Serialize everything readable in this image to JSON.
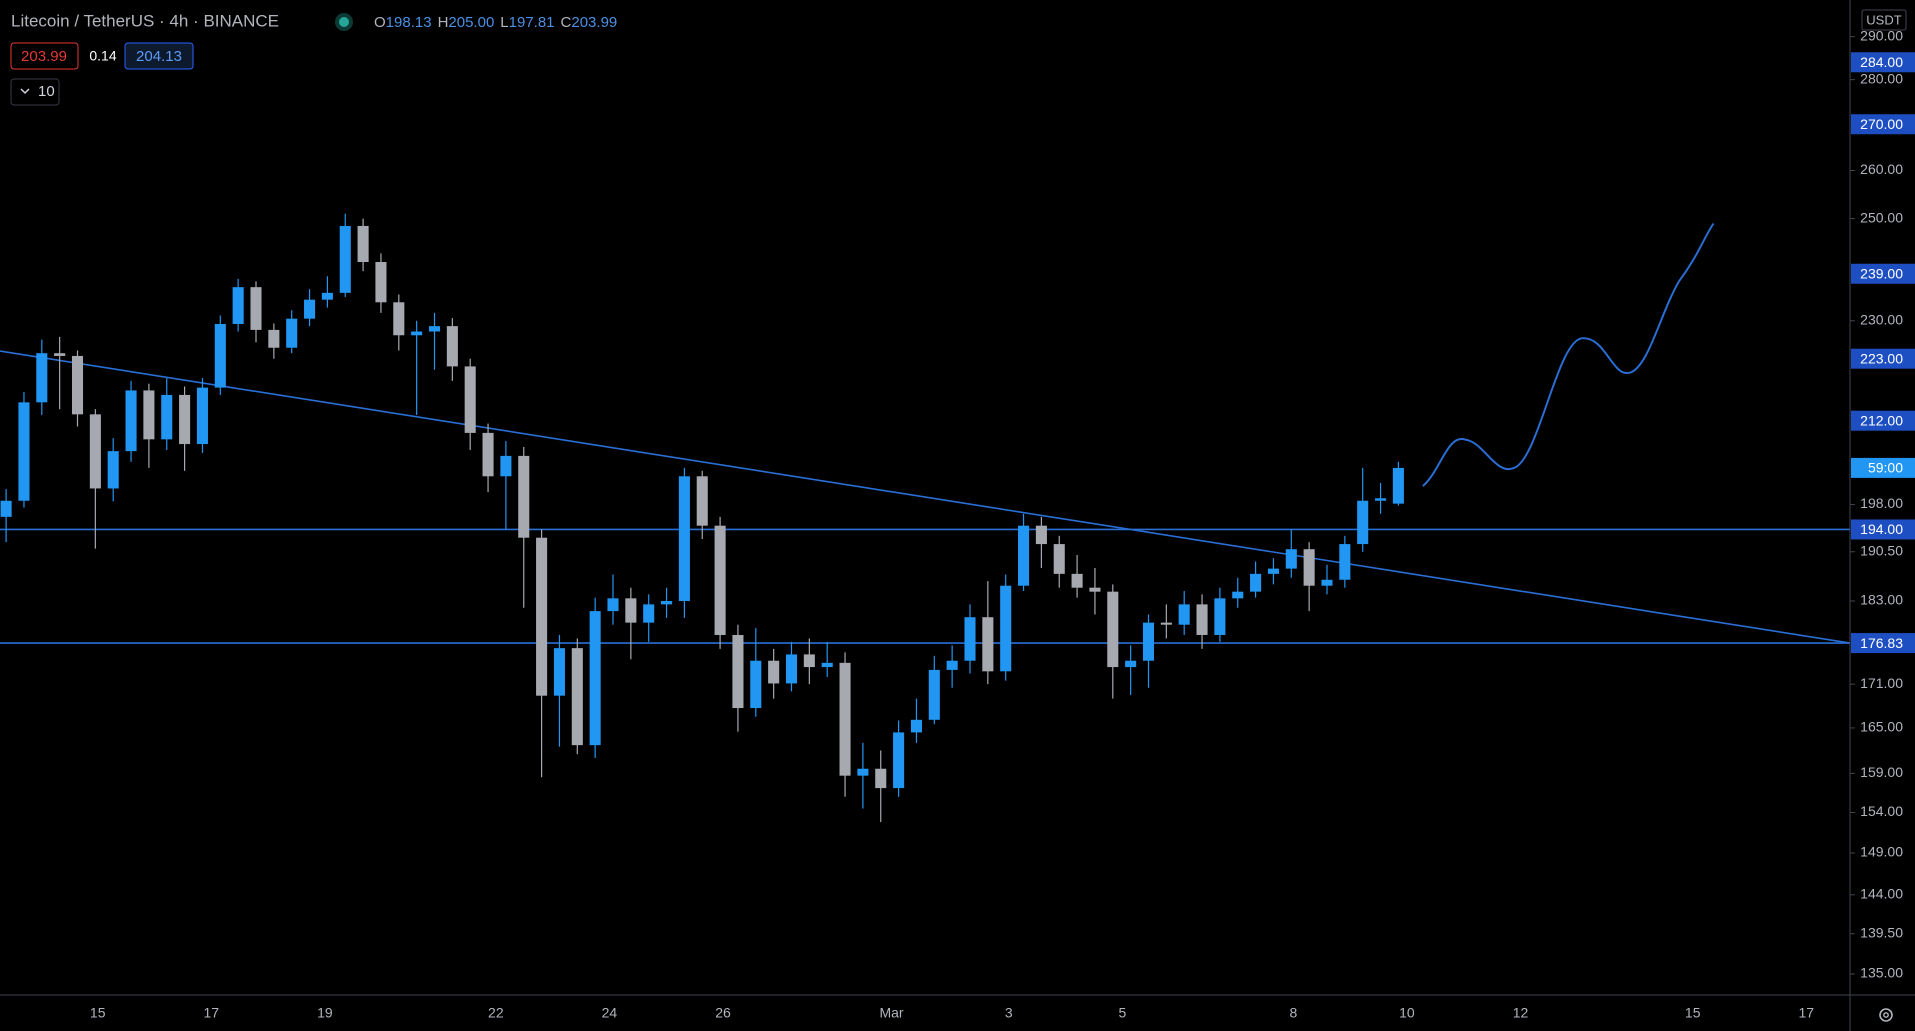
{
  "chart_data": {
    "type": "candlestick",
    "title": "Litecoin / TetherUS · 4h · BINANCE",
    "currency": "USDT",
    "log": true,
    "ylim": [
      132.7,
      298.8
    ],
    "yticks": [
      {
        "value": 290,
        "label": "290.00"
      },
      {
        "value": 280,
        "label": "280.00"
      },
      {
        "value": 260,
        "label": "260.00"
      },
      {
        "value": 250,
        "label": "250.00"
      },
      {
        "value": 230,
        "label": "230.00"
      },
      {
        "value": 198,
        "label": "198.00"
      },
      {
        "value": 190.5,
        "label": "190.50"
      },
      {
        "value": 183,
        "label": "183.00"
      },
      {
        "value": 171,
        "label": "171.00"
      },
      {
        "value": 165,
        "label": "165.00"
      },
      {
        "value": 159,
        "label": "159.00"
      },
      {
        "value": 154,
        "label": "154.00"
      },
      {
        "value": 149,
        "label": "149.00"
      },
      {
        "value": 144,
        "label": "144.00"
      },
      {
        "value": 139.5,
        "label": "139.50"
      },
      {
        "value": 135,
        "label": "135.00"
      }
    ],
    "x_labels": [
      "15",
      "17",
      "19",
      "22",
      "24",
      "26",
      "Mar",
      "3",
      "5",
      "8",
      "10",
      "12",
      "15",
      "17"
    ],
    "up_color": "#2196f3",
    "down_color": "#a7a9b0",
    "open": [
      196.0,
      198.6,
      215.2,
      224.0,
      223.5,
      213.1,
      200.6,
      206.8,
      217.3,
      208.8,
      216.5,
      208.0,
      217.8,
      229.4,
      236.4,
      228.3,
      225.0,
      230.4,
      234.0,
      235.3,
      248.5,
      241.3,
      233.5,
      227.3,
      228.0,
      229.0,
      221.6,
      209.9,
      202.6,
      206.0,
      192.7,
      169.4,
      176.1,
      162.7,
      181.5,
      183.4,
      179.8,
      182.5,
      183.0,
      202.6,
      194.6,
      178.0,
      167.7,
      174.3,
      171.1,
      175.2,
      173.4,
      174.0,
      158.7,
      159.6,
      157.1,
      164.4,
      166.1,
      173.0,
      174.3,
      180.6,
      172.8,
      185.3,
      194.6,
      191.7,
      187.1,
      185.0,
      184.4,
      173.4,
      174.3,
      179.8,
      179.5,
      182.5,
      178.0,
      183.4,
      184.4,
      187.1,
      187.9,
      190.9,
      185.3,
      186.2,
      191.7,
      198.6,
      198.13
    ],
    "high": [
      200.5,
      217.0,
      226.5,
      227.0,
      224.5,
      214.0,
      209.0,
      219.0,
      218.5,
      219.5,
      218.0,
      219.5,
      231.0,
      238.0,
      237.5,
      229.5,
      232.0,
      236.0,
      238.5,
      251.0,
      250.0,
      243.0,
      235.0,
      230.0,
      231.5,
      230.5,
      223.0,
      211.5,
      208.5,
      207.5,
      194.0,
      178.0,
      177.5,
      183.5,
      187.0,
      185.0,
      184.0,
      185.0,
      204.0,
      203.5,
      196.0,
      179.5,
      179.0,
      176.0,
      177.0,
      177.5,
      177.0,
      175.5,
      163.0,
      162.0,
      166.0,
      169.0,
      175.0,
      176.5,
      182.5,
      186.0,
      187.0,
      196.5,
      196.0,
      193.0,
      190.0,
      188.0,
      185.5,
      176.5,
      181.0,
      182.5,
      184.5,
      184.0,
      185.0,
      186.5,
      189.0,
      189.5,
      194.0,
      192.0,
      188.5,
      193.0,
      204.0,
      201.5,
      205.0
    ],
    "low": [
      192.0,
      197.5,
      213.0,
      214.0,
      211.0,
      191.0,
      198.5,
      205.0,
      204.0,
      207.0,
      203.5,
      206.5,
      216.5,
      228.0,
      226.0,
      223.0,
      224.0,
      229.0,
      232.5,
      234.5,
      239.5,
      231.5,
      224.5,
      213.0,
      221.0,
      219.0,
      207.0,
      200.0,
      194.0,
      182.0,
      158.5,
      162.5,
      161.5,
      161.0,
      179.5,
      174.5,
      177.0,
      180.5,
      180.5,
      192.5,
      176.0,
      164.5,
      166.5,
      169.0,
      170.0,
      171.0,
      172.0,
      156.0,
      154.5,
      152.8,
      156.0,
      163.0,
      165.5,
      170.5,
      172.5,
      171.0,
      171.5,
      184.5,
      188.0,
      185.0,
      183.5,
      181.0,
      169.0,
      169.5,
      170.5,
      177.5,
      178.0,
      176.0,
      177.0,
      182.0,
      183.5,
      185.5,
      186.5,
      181.5,
      184.0,
      185.0,
      190.5,
      196.5,
      197.81
    ],
    "close": [
      198.6,
      215.2,
      224.0,
      223.5,
      213.1,
      200.6,
      206.8,
      217.3,
      208.8,
      216.5,
      208.0,
      217.8,
      229.4,
      236.4,
      228.3,
      225.0,
      230.4,
      234.0,
      235.3,
      248.5,
      241.3,
      233.5,
      227.3,
      228.0,
      229.0,
      221.6,
      209.9,
      202.6,
      206.0,
      192.7,
      169.4,
      176.1,
      162.7,
      181.5,
      183.4,
      179.8,
      182.5,
      183.0,
      202.6,
      194.6,
      178.0,
      167.7,
      174.3,
      171.1,
      175.2,
      173.4,
      174.0,
      158.7,
      159.6,
      157.1,
      164.4,
      166.1,
      173.0,
      174.3,
      180.6,
      172.8,
      185.3,
      194.6,
      191.7,
      187.1,
      185.0,
      184.4,
      173.4,
      174.3,
      179.8,
      179.5,
      182.5,
      178.0,
      183.4,
      184.4,
      187.1,
      187.9,
      190.9,
      185.3,
      186.2,
      191.7,
      198.6,
      199.0,
      203.99
    ],
    "levels": [
      194,
      176.83
    ],
    "trendline": [
      224.4,
      176.83
    ],
    "line_color": "#2a6fd6",
    "price_labels": [
      {
        "value": 284,
        "label": "284.00"
      },
      {
        "value": 270,
        "label": "270.00"
      },
      {
        "value": 239,
        "label": "239.00"
      },
      {
        "value": 223,
        "label": "223.00"
      },
      {
        "value": 212,
        "label": "212.00"
      },
      {
        "value": 194,
        "label": "194.00"
      },
      {
        "value": 176.83,
        "label": "176.83"
      }
    ],
    "label_color": "#1e4fc2",
    "countdown": "59:00",
    "countdown_color": "#2196f3"
  },
  "header": {
    "ohlc": [
      {
        "key": "O",
        "value": "198.13"
      },
      {
        "key": "H",
        "value": "205.00"
      },
      {
        "key": "L",
        "value": "197.81"
      },
      {
        "key": "C",
        "value": "203.99"
      }
    ],
    "bid": "203.99",
    "spread": "0.14",
    "ask": "204.13",
    "indicator": "10"
  }
}
